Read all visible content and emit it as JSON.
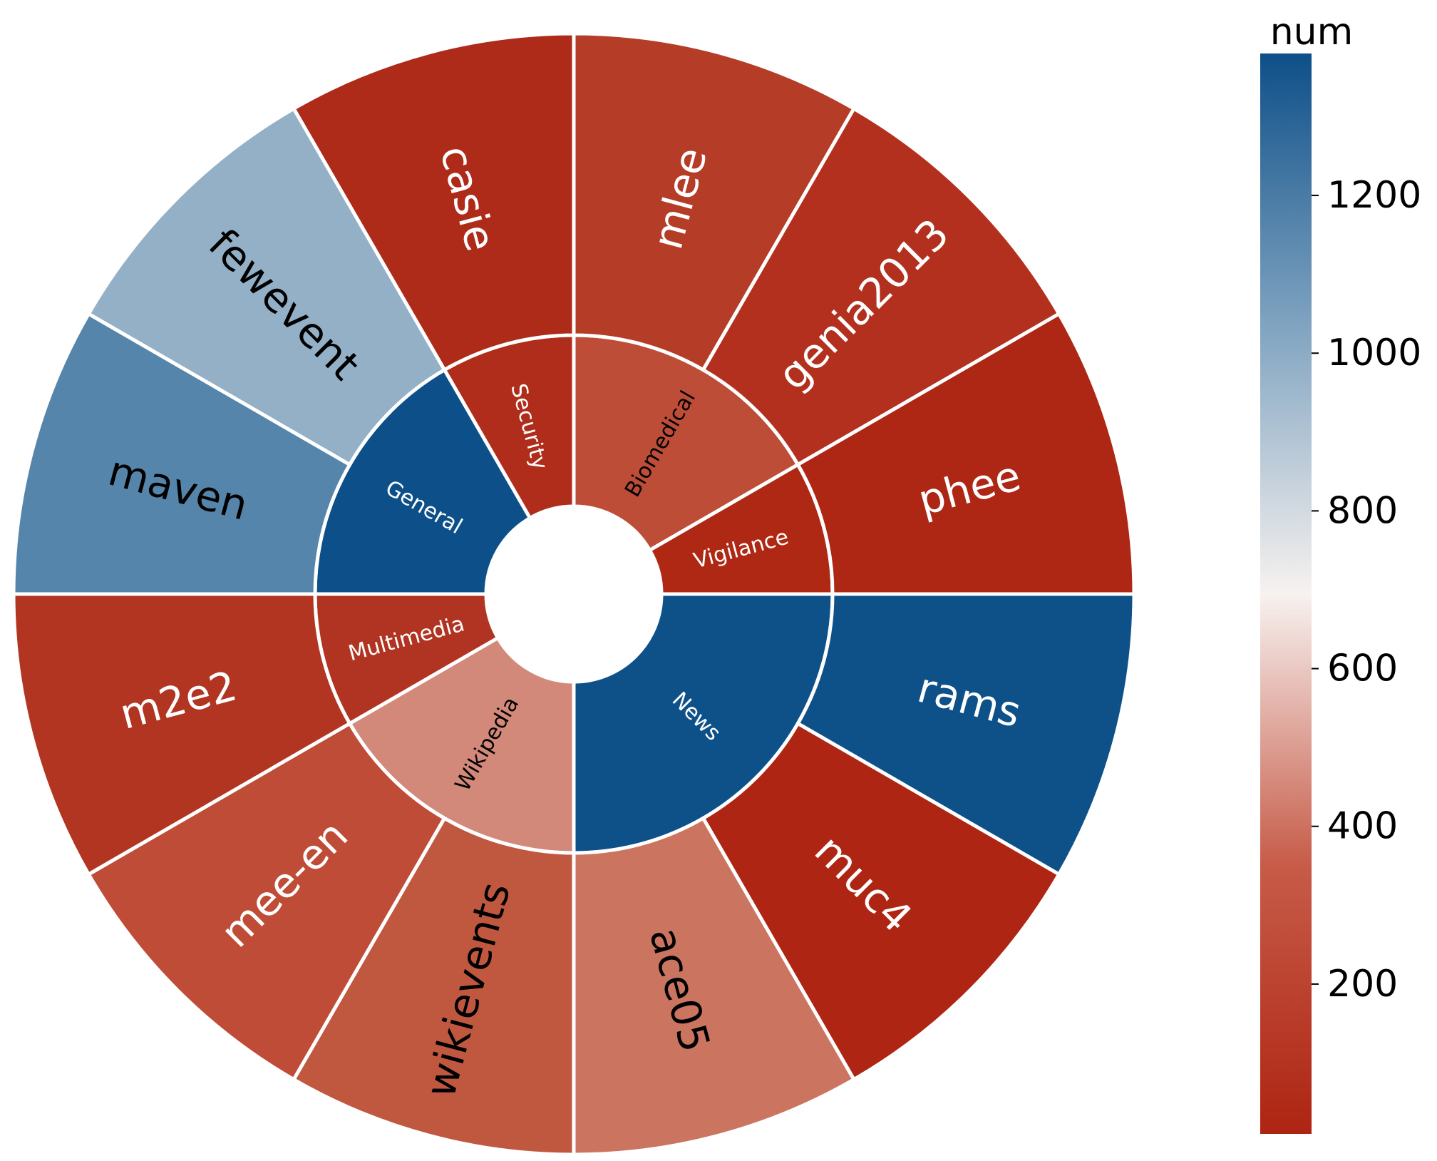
{
  "chart_data": {
    "type": "sunburst",
    "rings": [
      "domain",
      "dataset"
    ],
    "value_field": "num",
    "domains": [
      {
        "name": "Security",
        "value": 50,
        "datasets": [
          {
            "name": "casie",
            "value": 40
          }
        ]
      },
      {
        "name": "Biomedical",
        "value": 180,
        "datasets": [
          {
            "name": "mlee",
            "value": 90
          },
          {
            "name": "genia2013",
            "value": 70
          }
        ]
      },
      {
        "name": "Vigilance",
        "value": 40,
        "datasets": [
          {
            "name": "phee",
            "value": 40
          }
        ]
      },
      {
        "name": "News",
        "value": 1370,
        "datasets": [
          {
            "name": "rams",
            "value": 1370
          },
          {
            "name": "muc4",
            "value": 30
          }
        ]
      },
      {
        "name": "Wikipedia",
        "value": 380,
        "datasets": [
          {
            "name": "ace05",
            "value": 330
          },
          {
            "name": "wikievents",
            "value": 200
          }
        ]
      },
      {
        "name": "Multimedia",
        "value": 90,
        "datasets": [
          {
            "name": "mee-en",
            "value": 180
          },
          {
            "name": "m2e2",
            "value": 80
          }
        ]
      },
      {
        "name": "General",
        "value": 1370,
        "datasets": [
          {
            "name": "maven",
            "value": 1170
          },
          {
            "name": "fewevent",
            "value": 1000
          }
        ]
      }
    ],
    "colorbar": {
      "title": "num",
      "min": 10,
      "max": 1380,
      "ticks": [
        200,
        400,
        600,
        800,
        1000,
        1200
      ],
      "colormap": [
        {
          "pos": 0.0,
          "color": "#ae2412"
        },
        {
          "pos": 0.25,
          "color": "#c75c49"
        },
        {
          "pos": 0.5,
          "color": "#f7f2f0"
        },
        {
          "pos": 0.75,
          "color": "#7fa3c0"
        },
        {
          "pos": 1.0,
          "color": "#0e4f88"
        }
      ]
    },
    "colors": {
      "Security": "#b02d1b",
      "Biomedical": "#bd4d37",
      "Vigilance": "#ae2814",
      "News": "#0e5189",
      "Wikipedia": "#d3897a",
      "Multimedia": "#b13321",
      "General": "#0d5089",
      "casie": "#ae2a19",
      "mlee": "#b53c26",
      "genia2013": "#b2301d",
      "phee": "#ae2715",
      "rams": "#0e5189",
      "muc4": "#ae2513",
      "ace05": "#cb7561",
      "wikievents": "#c05840",
      "mee-en": "#bf4c36",
      "m2e2": "#b23522",
      "maven": "#5685ab",
      "fewevent": "#93b0c7"
    },
    "label_dark": [
      "Biomedical",
      "Wikipedia",
      "ace05",
      "wikievents",
      "maven",
      "fewevent"
    ]
  }
}
